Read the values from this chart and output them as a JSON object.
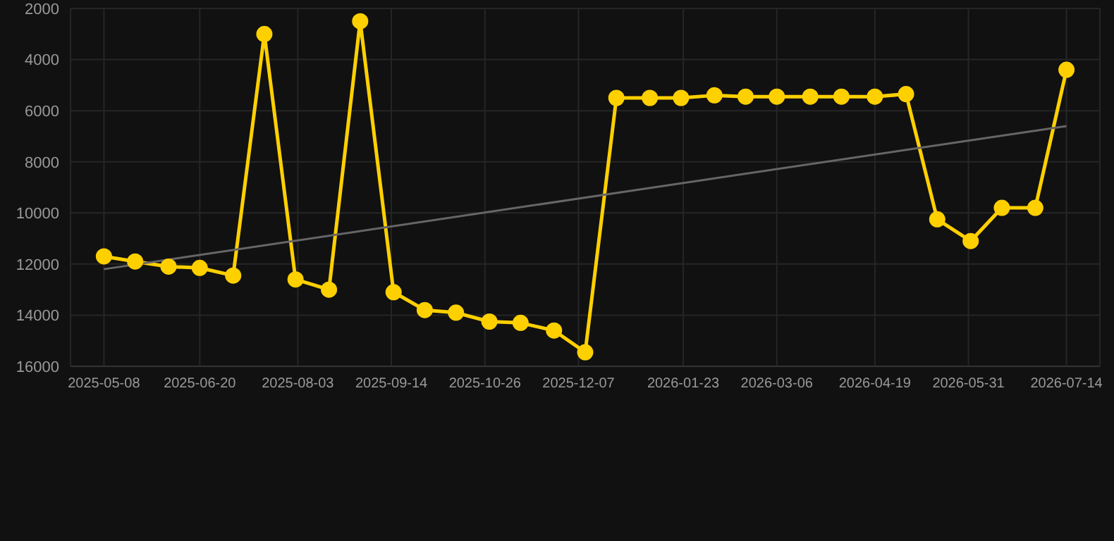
{
  "chart_data": {
    "type": "line",
    "x": [
      "2025-05-08",
      "2025-05-22",
      "2025-06-06",
      "2025-06-20",
      "2025-07-05",
      "2025-07-19",
      "2025-08-02",
      "2025-08-17",
      "2025-08-31",
      "2025-09-15",
      "2025-09-29",
      "2025-10-13",
      "2025-10-28",
      "2025-11-11",
      "2025-11-26",
      "2025-12-10",
      "2025-12-24",
      "2026-01-08",
      "2026-01-22",
      "2026-02-06",
      "2026-02-20",
      "2026-03-06",
      "2026-03-21",
      "2026-04-04",
      "2026-04-19",
      "2026-05-03",
      "2026-05-17",
      "2026-06-01",
      "2026-06-15",
      "2026-06-30",
      "2026-07-14"
    ],
    "series": [
      {
        "color": "#ffd000",
        "marker": "circle",
        "values": [
          11700,
          11900,
          12100,
          12150,
          12450,
          3000,
          12600,
          13000,
          2500,
          13100,
          13800,
          13900,
          14250,
          14300,
          14600,
          15450,
          5500,
          5500,
          5500,
          5400,
          5450,
          5450,
          5450,
          5450,
          5450,
          5350,
          10250,
          11100,
          9800,
          9800,
          4400
        ]
      },
      {
        "type": "line",
        "color": "#666666",
        "marker": "none",
        "x": [
          "2025-05-08",
          "2026-07-14"
        ],
        "values": [
          12200,
          6600
        ]
      }
    ],
    "xlim": [
      "2025-04-23",
      "2026-07-29"
    ],
    "xticks": [
      {
        "value": "2025-05-08",
        "label": "2025-05-08"
      },
      {
        "value": "2025-06-20",
        "label": "2025-06-20"
      },
      {
        "value": "2025-08-03",
        "label": "2025-08-03"
      },
      {
        "value": "2025-09-14",
        "label": "2025-09-14"
      },
      {
        "value": "2025-10-26",
        "label": "2025-10-26"
      },
      {
        "value": "2025-12-07",
        "label": "2025-12-07"
      },
      {
        "value": "2026-01-23",
        "label": "2026-01-23"
      },
      {
        "value": "2026-03-06",
        "label": "2026-03-06"
      },
      {
        "value": "2026-04-19",
        "label": "2026-04-19"
      },
      {
        "value": "2026-05-31",
        "label": "2026-05-31"
      },
      {
        "value": "2026-07-14",
        "label": "2026-07-14"
      }
    ],
    "ylim": [
      16000,
      2000
    ],
    "yticks": [
      2000,
      4000,
      6000,
      8000,
      10000,
      12000,
      14000,
      16000
    ],
    "grid": true,
    "line_style": "solid"
  }
}
